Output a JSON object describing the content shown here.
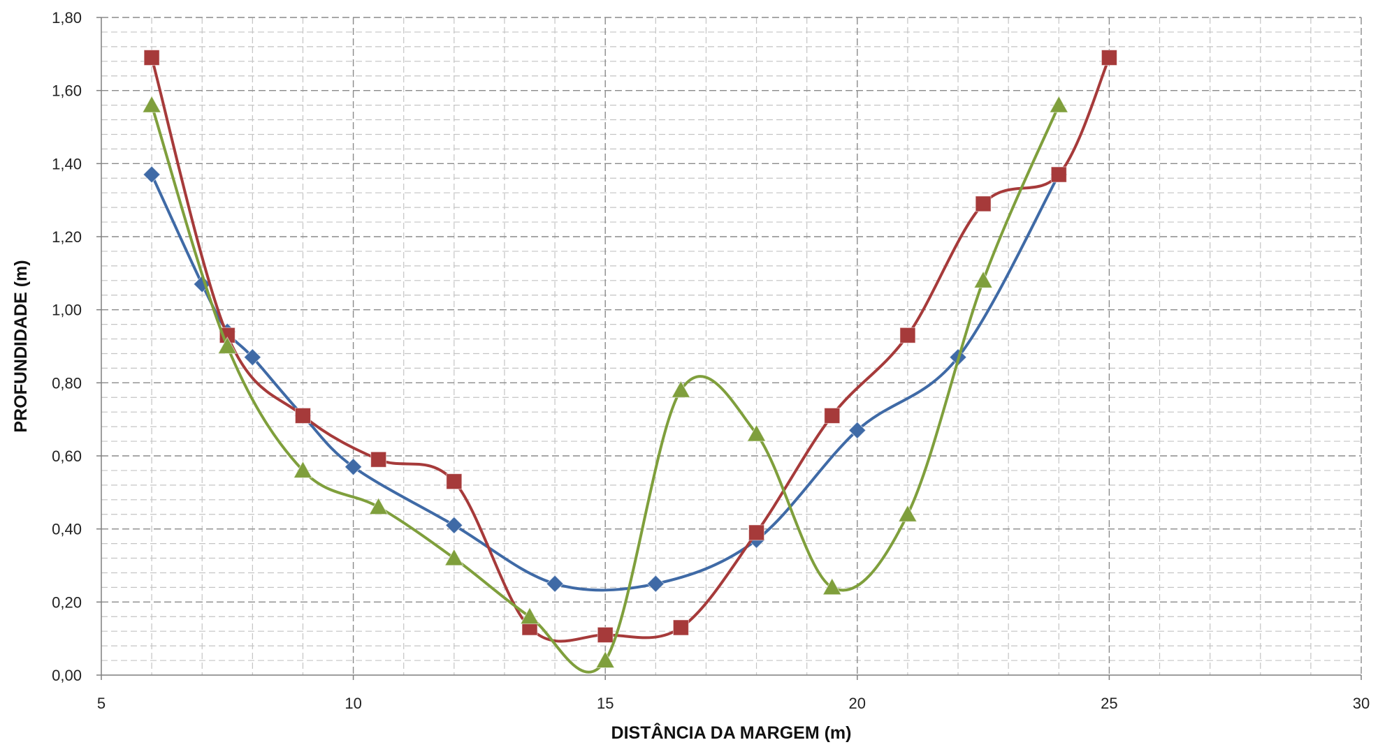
{
  "chart_data": {
    "type": "line",
    "title": "",
    "xlabel": "DISTÂNCIA DA MARGEM (m)",
    "ylabel": "PROFUNDIDADE (m)",
    "xlim": [
      5,
      30
    ],
    "ylim": [
      0,
      1.8
    ],
    "x_ticks": [
      5,
      10,
      15,
      20,
      25,
      30
    ],
    "x_tick_labels": [
      "5",
      "10",
      "15",
      "20",
      "25",
      "30"
    ],
    "y_ticks": [
      0,
      0.2,
      0.4,
      0.6,
      0.8,
      1.0,
      1.2,
      1.4,
      1.6,
      1.8
    ],
    "y_tick_labels": [
      "0,00",
      "0,20",
      "0,40",
      "0,60",
      "0,80",
      "1,00",
      "1,20",
      "1,40",
      "1,60",
      "1,80"
    ],
    "grid": true,
    "legend": "none",
    "smooth": true,
    "series": [
      {
        "color": "#3f6aa6",
        "marker": "diamond",
        "points": [
          [
            6,
            1.37
          ],
          [
            7,
            1.07
          ],
          [
            7.5,
            0.94
          ],
          [
            8,
            0.87
          ],
          [
            9,
            0.71
          ],
          [
            10,
            0.57
          ],
          [
            12,
            0.41
          ],
          [
            14,
            0.25
          ],
          [
            16,
            0.25
          ],
          [
            18,
            0.37
          ],
          [
            20,
            0.67
          ],
          [
            22,
            0.87
          ],
          [
            24,
            1.37
          ]
        ]
      },
      {
        "color": "#a63a3a",
        "marker": "square",
        "points": [
          [
            6,
            1.69
          ],
          [
            7.5,
            0.93
          ],
          [
            9,
            0.71
          ],
          [
            10.5,
            0.59
          ],
          [
            12,
            0.53
          ],
          [
            13.5,
            0.13
          ],
          [
            15,
            0.11
          ],
          [
            16.5,
            0.13
          ],
          [
            18,
            0.39
          ],
          [
            19.5,
            0.71
          ],
          [
            21,
            0.93
          ],
          [
            22.5,
            1.29
          ],
          [
            24,
            1.37
          ],
          [
            25,
            1.69
          ]
        ]
      },
      {
        "color": "#7f9f3c",
        "marker": "triangle",
        "points": [
          [
            6,
            1.56
          ],
          [
            7.5,
            0.9
          ],
          [
            9,
            0.56
          ],
          [
            10.5,
            0.46
          ],
          [
            12,
            0.32
          ],
          [
            13.5,
            0.16
          ],
          [
            15,
            0.04
          ],
          [
            16.5,
            0.78
          ],
          [
            18,
            0.66
          ],
          [
            19.5,
            0.24
          ],
          [
            21,
            0.44
          ],
          [
            22.5,
            1.08
          ],
          [
            24,
            1.56
          ]
        ]
      }
    ]
  }
}
